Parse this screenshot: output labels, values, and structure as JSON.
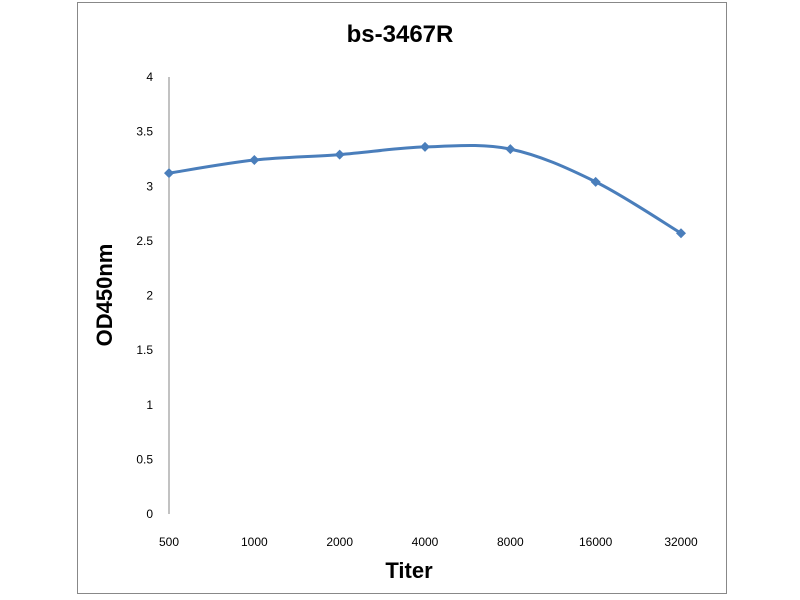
{
  "chart_data": {
    "type": "line",
    "title": "bs-3467R",
    "xlabel": "Titer",
    "ylabel": "OD450nm",
    "categories": [
      "500",
      "1000",
      "2000",
      "4000",
      "8000",
      "16000",
      "32000"
    ],
    "series": [
      {
        "values": [
          3.12,
          3.24,
          3.29,
          3.36,
          3.34,
          3.04,
          2.57
        ]
      }
    ],
    "ylim": [
      0,
      4
    ],
    "yticks": [
      "0",
      "0.5",
      "1",
      "1.5",
      "2",
      "2.5",
      "3",
      "3.5",
      "4"
    ],
    "grid": false,
    "legend": "none",
    "line_color": "#4a7ebb",
    "smooth": true
  }
}
